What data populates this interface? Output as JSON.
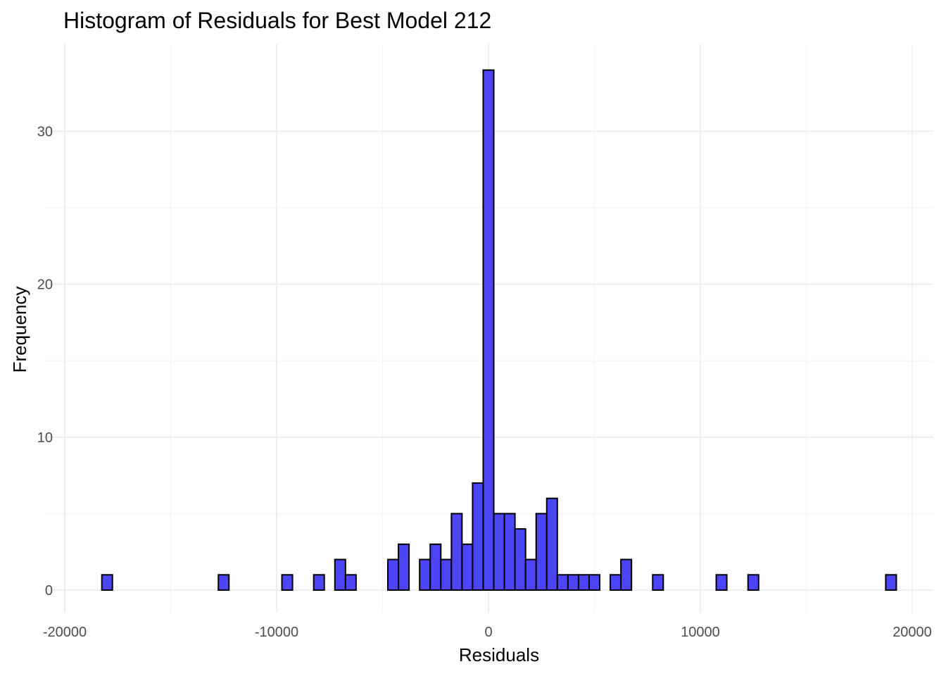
{
  "chart_data": {
    "type": "bar",
    "title": "Histogram of Residuals for Best Model 212",
    "xlabel": "Residuals",
    "ylabel": "Frequency",
    "xlim": [
      -20000,
      20000
    ],
    "ylim": [
      0,
      34
    ],
    "x_ticks": [
      -20000,
      -10000,
      0,
      10000,
      20000
    ],
    "x_tick_labels": [
      "-20000",
      "-10000",
      "0",
      "10000",
      "20000"
    ],
    "y_ticks": [
      0,
      10,
      20,
      30
    ],
    "y_tick_labels": [
      "0",
      "10",
      "20",
      "30"
    ],
    "grid": true,
    "bin_width": 500,
    "bar_color": "#4b45f6",
    "outline_color": "#000000",
    "bins": [
      {
        "x": -18000,
        "count": 1
      },
      {
        "x": -17500,
        "count": 0
      },
      {
        "x": -17000,
        "count": 0
      },
      {
        "x": -16500,
        "count": 0
      },
      {
        "x": -16000,
        "count": 0
      },
      {
        "x": -15500,
        "count": 0
      },
      {
        "x": -15000,
        "count": 0
      },
      {
        "x": -14500,
        "count": 0
      },
      {
        "x": -14000,
        "count": 0
      },
      {
        "x": -13500,
        "count": 0
      },
      {
        "x": -13000,
        "count": 0
      },
      {
        "x": -12500,
        "count": 1
      },
      {
        "x": -12000,
        "count": 0
      },
      {
        "x": -11500,
        "count": 0
      },
      {
        "x": -11000,
        "count": 0
      },
      {
        "x": -10500,
        "count": 0
      },
      {
        "x": -10000,
        "count": 0
      },
      {
        "x": -9500,
        "count": 1
      },
      {
        "x": -9000,
        "count": 0
      },
      {
        "x": -8500,
        "count": 0
      },
      {
        "x": -8000,
        "count": 1
      },
      {
        "x": -7500,
        "count": 0
      },
      {
        "x": -7000,
        "count": 2
      },
      {
        "x": -6500,
        "count": 1
      },
      {
        "x": -6000,
        "count": 0
      },
      {
        "x": -5500,
        "count": 0
      },
      {
        "x": -5000,
        "count": 0
      },
      {
        "x": -4500,
        "count": 2
      },
      {
        "x": -4000,
        "count": 3
      },
      {
        "x": -3500,
        "count": 0
      },
      {
        "x": -3000,
        "count": 2
      },
      {
        "x": -2500,
        "count": 3
      },
      {
        "x": -2000,
        "count": 2
      },
      {
        "x": -1500,
        "count": 5
      },
      {
        "x": -1000,
        "count": 3
      },
      {
        "x": -500,
        "count": 7
      },
      {
        "x": 0,
        "count": 34
      },
      {
        "x": 500,
        "count": 5
      },
      {
        "x": 1000,
        "count": 5
      },
      {
        "x": 1500,
        "count": 4
      },
      {
        "x": 2000,
        "count": 2
      },
      {
        "x": 2500,
        "count": 5
      },
      {
        "x": 3000,
        "count": 6
      },
      {
        "x": 3500,
        "count": 1
      },
      {
        "x": 4000,
        "count": 1
      },
      {
        "x": 4500,
        "count": 1
      },
      {
        "x": 5000,
        "count": 1
      },
      {
        "x": 5500,
        "count": 0
      },
      {
        "x": 6000,
        "count": 1
      },
      {
        "x": 6500,
        "count": 2
      },
      {
        "x": 7000,
        "count": 0
      },
      {
        "x": 7500,
        "count": 0
      },
      {
        "x": 8000,
        "count": 1
      },
      {
        "x": 8500,
        "count": 0
      },
      {
        "x": 9000,
        "count": 0
      },
      {
        "x": 9500,
        "count": 0
      },
      {
        "x": 10000,
        "count": 0
      },
      {
        "x": 10500,
        "count": 0
      },
      {
        "x": 11000,
        "count": 1
      },
      {
        "x": 11500,
        "count": 0
      },
      {
        "x": 12000,
        "count": 0
      },
      {
        "x": 12500,
        "count": 1
      },
      {
        "x": 13000,
        "count": 0
      },
      {
        "x": 13500,
        "count": 0
      },
      {
        "x": 14000,
        "count": 0
      },
      {
        "x": 14500,
        "count": 0
      },
      {
        "x": 15000,
        "count": 0
      },
      {
        "x": 15500,
        "count": 0
      },
      {
        "x": 16000,
        "count": 0
      },
      {
        "x": 16500,
        "count": 0
      },
      {
        "x": 17000,
        "count": 0
      },
      {
        "x": 17500,
        "count": 0
      },
      {
        "x": 18000,
        "count": 0
      },
      {
        "x": 18500,
        "count": 0
      },
      {
        "x": 19000,
        "count": 1
      }
    ]
  }
}
